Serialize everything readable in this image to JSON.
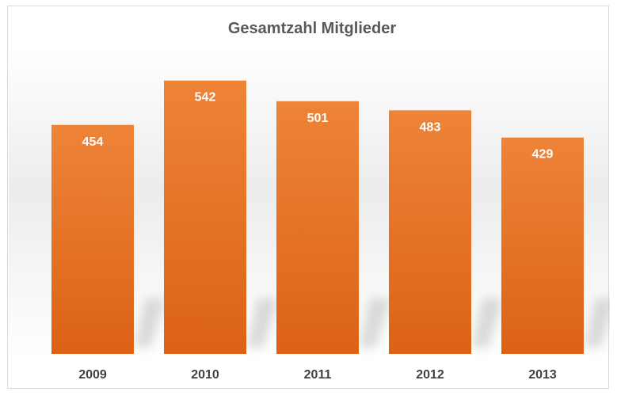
{
  "chart_data": {
    "type": "bar",
    "title": "Gesamtzahl Mitglieder",
    "categories": [
      "2009",
      "2010",
      "2011",
      "2012",
      "2013"
    ],
    "values": [
      454,
      542,
      501,
      483,
      429
    ],
    "xlabel": "",
    "ylabel": "",
    "ylim": [
      0,
      540
    ],
    "grid": false,
    "legend": "none",
    "data_labels": "inside-top"
  },
  "colors": {
    "bar_top": "#EE8438",
    "bar_bottom": "#DC6214",
    "title": "#595959",
    "axis_text": "#404040",
    "data_label": "#FFFFFF",
    "shadow": "#BFBFBF"
  }
}
